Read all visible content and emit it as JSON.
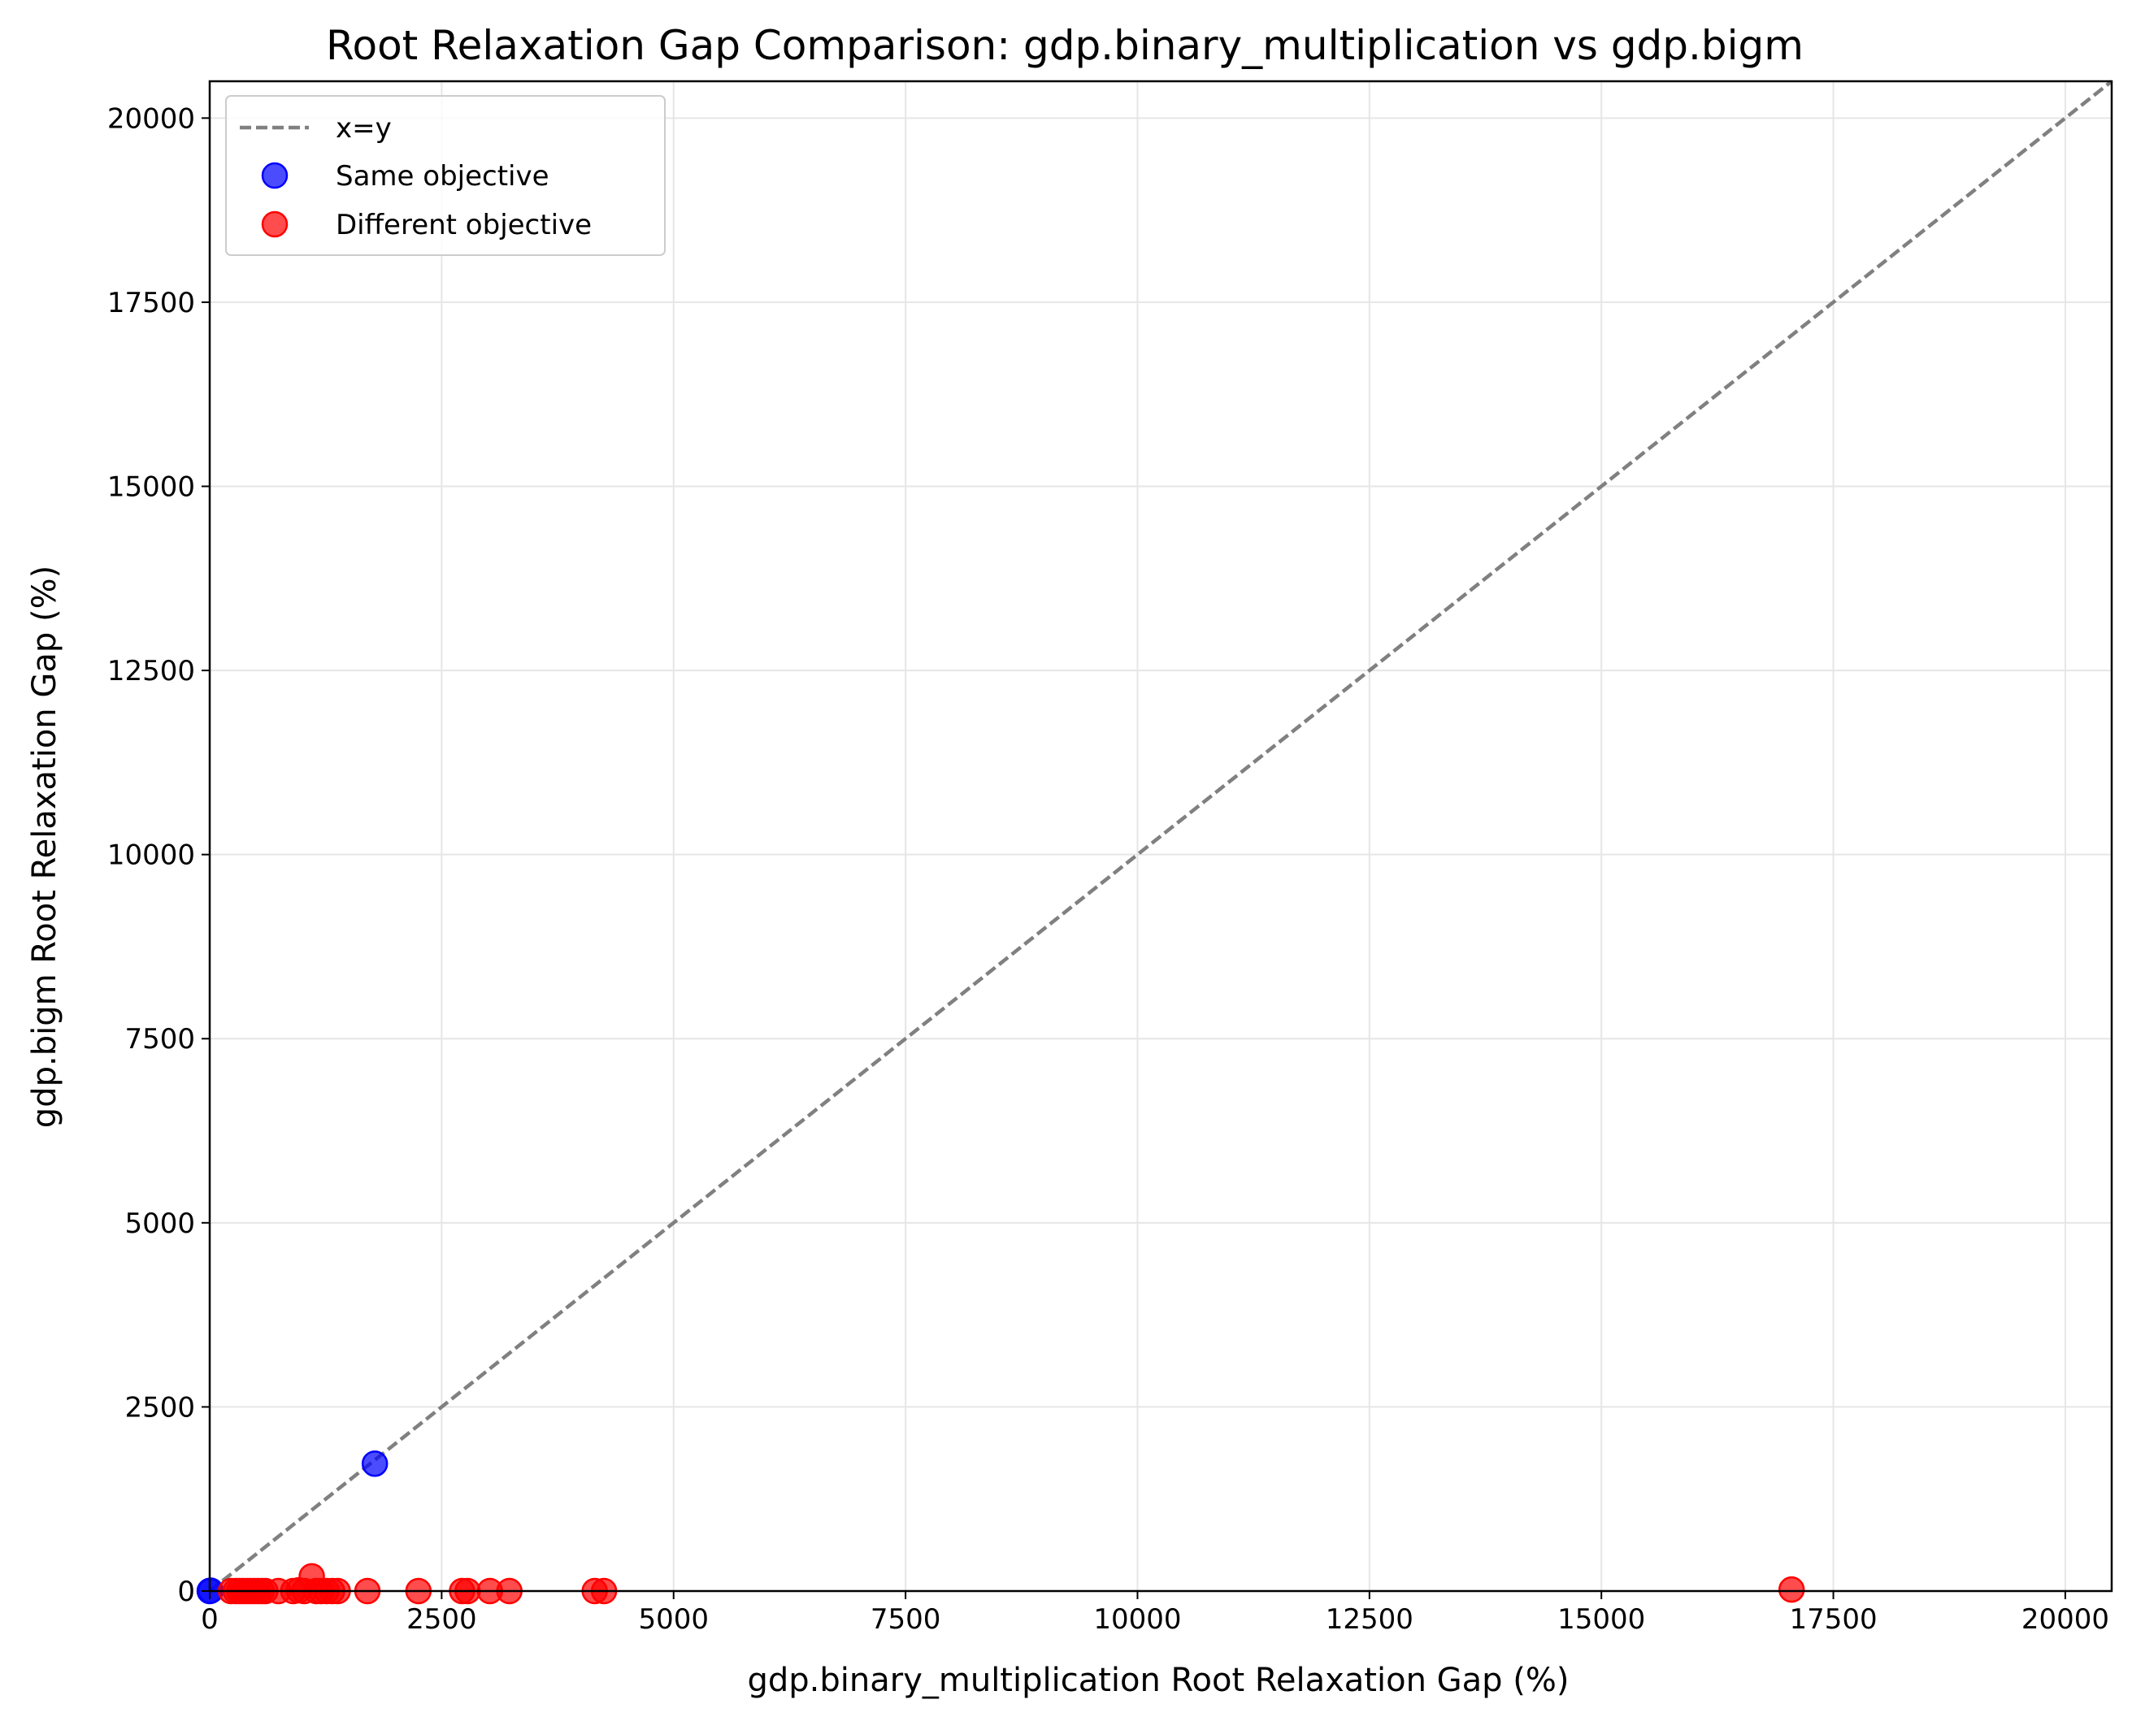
{
  "chart_data": {
    "type": "scatter",
    "title": "Root Relaxation Gap Comparison: gdp.binary_multiplication vs gdp.bigm",
    "xlabel": "gdp.binary_multiplication Root Relaxation Gap (%)",
    "ylabel": "gdp.bigm Root Relaxation Gap (%)",
    "xlim": [
      0,
      20500
    ],
    "ylim": [
      0,
      20500
    ],
    "xticks": [
      0,
      2500,
      5000,
      7500,
      10000,
      12500,
      15000,
      17500,
      20000
    ],
    "yticks": [
      0,
      2500,
      5000,
      7500,
      10000,
      12500,
      15000,
      17500,
      20000
    ],
    "grid": true,
    "legend_position": "top-left",
    "reference_line": {
      "name": "x=y",
      "color": "#808080",
      "style": "dashed"
    },
    "series": [
      {
        "name": "Same objective",
        "color": "#0000ff",
        "points": [
          {
            "x": 0,
            "y": 0
          },
          {
            "x": 10,
            "y": 5
          },
          {
            "x": 1780,
            "y": 1730
          }
        ]
      },
      {
        "name": "Different objective",
        "color": "#ff0000",
        "points": [
          {
            "x": 230,
            "y": 0
          },
          {
            "x": 280,
            "y": 0
          },
          {
            "x": 320,
            "y": 0
          },
          {
            "x": 360,
            "y": 0
          },
          {
            "x": 400,
            "y": 0
          },
          {
            "x": 440,
            "y": 0
          },
          {
            "x": 480,
            "y": 0
          },
          {
            "x": 520,
            "y": 0
          },
          {
            "x": 560,
            "y": 0
          },
          {
            "x": 600,
            "y": 0
          },
          {
            "x": 740,
            "y": 0
          },
          {
            "x": 900,
            "y": 0
          },
          {
            "x": 960,
            "y": 10
          },
          {
            "x": 1020,
            "y": 0
          },
          {
            "x": 1100,
            "y": 200
          },
          {
            "x": 1150,
            "y": 0
          },
          {
            "x": 1200,
            "y": 0
          },
          {
            "x": 1260,
            "y": 0
          },
          {
            "x": 1320,
            "y": 0
          },
          {
            "x": 1380,
            "y": 0
          },
          {
            "x": 1700,
            "y": 0
          },
          {
            "x": 2250,
            "y": 0
          },
          {
            "x": 2720,
            "y": 0
          },
          {
            "x": 2780,
            "y": 0
          },
          {
            "x": 3020,
            "y": 0
          },
          {
            "x": 3230,
            "y": 0
          },
          {
            "x": 4150,
            "y": 0
          },
          {
            "x": 4250,
            "y": 0
          },
          {
            "x": 17050,
            "y": 20
          }
        ]
      }
    ]
  }
}
